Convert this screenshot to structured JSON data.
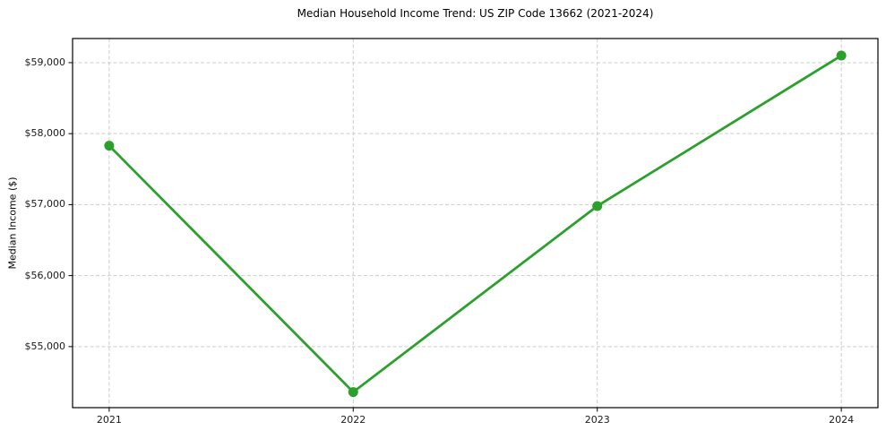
{
  "chart_data": {
    "type": "line",
    "title": "Median Household Income Trend: US ZIP Code 13662 (2021-2024)",
    "xlabel": "",
    "ylabel": "Median Income ($)",
    "series": [
      {
        "name": "Median Household Income",
        "x": [
          2021,
          2022,
          2023,
          2024
        ],
        "values": [
          57830,
          54360,
          56980,
          59100
        ]
      }
    ],
    "xtick_values": [
      2021,
      2022,
      2023,
      2024
    ],
    "xtick_labels": [
      "2021",
      "2022",
      "2023",
      "2024"
    ],
    "ytick_values": [
      55000,
      56000,
      57000,
      58000,
      59000
    ],
    "ytick_labels": [
      "$55,000",
      "$56,000",
      "$57,000",
      "$58,000",
      "$59,000"
    ],
    "xlim": [
      2020.85,
      2024.15
    ],
    "ylim": [
      54140,
      59340
    ],
    "grid": true,
    "legend": false,
    "colors": {
      "line": "#2ca02c",
      "marker": "#2ca02c",
      "grid": "#cccccc",
      "spine": "#000000",
      "text": "#000000",
      "background": "#ffffff"
    },
    "marker_style": "circle",
    "marker_radius": 5.5,
    "line_width": 2.8
  }
}
